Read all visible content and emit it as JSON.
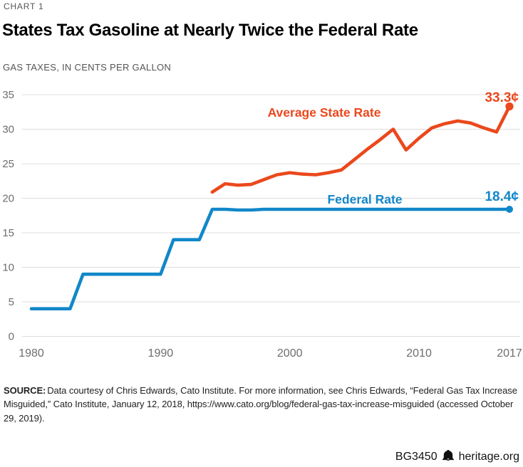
{
  "header": {
    "kicker": "CHART 1",
    "title": "States Tax Gasoline at Nearly Twice the Federal Rate",
    "subtitle": "GAS TAXES, IN CENTS PER GALLON"
  },
  "chart_data": {
    "type": "line",
    "title": "States Tax Gasoline at Nearly Twice the Federal Rate",
    "ylabel": "Gas taxes, in cents per gallon",
    "xlim": [
      1980,
      2017
    ],
    "ylim": [
      0,
      35
    ],
    "yticks": [
      0,
      5,
      10,
      15,
      20,
      25,
      30,
      35
    ],
    "xticks": [
      1980,
      1990,
      2000,
      2010,
      2017
    ],
    "grid": "horizontal-gridlines-only",
    "legend_position": "inline-line-labels",
    "grid_color": "#dddddd",
    "tick_color": "#6e6e6e",
    "series": [
      {
        "name": "Federal Rate",
        "color": "#1287C9",
        "first_year": 1980,
        "end_label": "18.4¢",
        "values": [
          4,
          4,
          4,
          4,
          9,
          9,
          9,
          9,
          9,
          9,
          9,
          14,
          14,
          14,
          18.4,
          18.4,
          18.3,
          18.3,
          18.4,
          18.4,
          18.4,
          18.4,
          18.4,
          18.4,
          18.4,
          18.4,
          18.4,
          18.4,
          18.4,
          18.4,
          18.4,
          18.4,
          18.4,
          18.4,
          18.4,
          18.4,
          18.4,
          18.4
        ]
      },
      {
        "name": "Average State Rate",
        "color": "#EB481C",
        "first_year": 1994,
        "end_label": "33.3¢",
        "values": [
          20.9,
          22.1,
          21.9,
          22.0,
          22.7,
          23.4,
          23.7,
          23.5,
          23.4,
          23.7,
          24.1,
          25.6,
          27.1,
          28.5,
          30.0,
          27.0,
          28.7,
          30.2,
          30.8,
          31.2,
          30.9,
          30.2,
          29.6,
          33.3
        ]
      }
    ]
  },
  "footer": {
    "source_label": "SOURCE:",
    "source_text": "Data courtesy of Chris Edwards, Cato Institute. For more information, see Chris Edwards, “Federal Gas Tax Increase Misguided,” Cato Institute, January 12, 2018, https://www.cato.org/blog/federal-gas-tax-increase-misguided (accessed October 29, 2019).",
    "doc_id": "BG3450",
    "site": "heritage.org"
  }
}
